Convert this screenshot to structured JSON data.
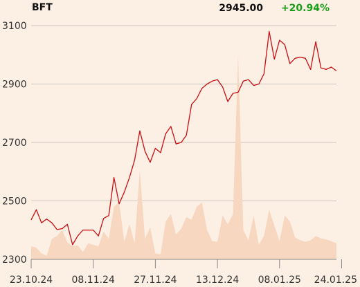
{
  "header": {
    "ticker": "BFT",
    "price": "2945.00",
    "change": "+20.94%"
  },
  "colors": {
    "background": "#fcefe3",
    "price_line": "#c80f14",
    "volume_area": "#f7d7c0",
    "grid": "#bdb7b0",
    "axis": "#888888",
    "change_positive": "#1a9e1a"
  },
  "chart_data": {
    "type": "line",
    "title": "",
    "xlabel": "",
    "ylabel": "",
    "ylim": [
      2300,
      3100
    ],
    "yticks": [
      2300,
      2500,
      2700,
      2900,
      3100
    ],
    "xtick_labels": [
      "23.10.24",
      "08.11.24",
      "27.11.24",
      "13.12.24",
      "08.01.25",
      "24.01.25"
    ],
    "xtick_positions": [
      0,
      12,
      24,
      36,
      48,
      60
    ],
    "grid": true,
    "series": [
      {
        "kind": "price",
        "values": [
          2435,
          2470,
          2425,
          2438,
          2425,
          2402,
          2405,
          2420,
          2350,
          2380,
          2400,
          2400,
          2400,
          2380,
          2440,
          2450,
          2580,
          2490,
          2530,
          2580,
          2640,
          2740,
          2670,
          2632,
          2680,
          2665,
          2730,
          2755,
          2695,
          2700,
          2725,
          2830,
          2850,
          2885,
          2900,
          2910,
          2915,
          2890,
          2840,
          2868,
          2872,
          2910,
          2915,
          2895,
          2900,
          2935,
          3080,
          2985,
          3050,
          3035,
          2970,
          2988,
          2992,
          2988,
          2950,
          3045,
          2955,
          2950,
          2958,
          2945
        ]
      },
      {
        "kind": "volume",
        "values": [
          2345,
          2340,
          2320,
          2312,
          2370,
          2380,
          2400,
          2358,
          2345,
          2348,
          2325,
          2355,
          2350,
          2345,
          2395,
          2370,
          2480,
          2495,
          2360,
          2420,
          2355,
          2605,
          2370,
          2410,
          2320,
          2318,
          2430,
          2455,
          2385,
          2405,
          2445,
          2435,
          2480,
          2495,
          2400,
          2362,
          2360,
          2450,
          2420,
          2455,
          2995,
          2400,
          2365,
          2450,
          2350,
          2380,
          2470,
          2415,
          2362,
          2450,
          2430,
          2375,
          2365,
          2360,
          2365,
          2380,
          2372,
          2368,
          2362,
          2355
        ]
      }
    ]
  }
}
